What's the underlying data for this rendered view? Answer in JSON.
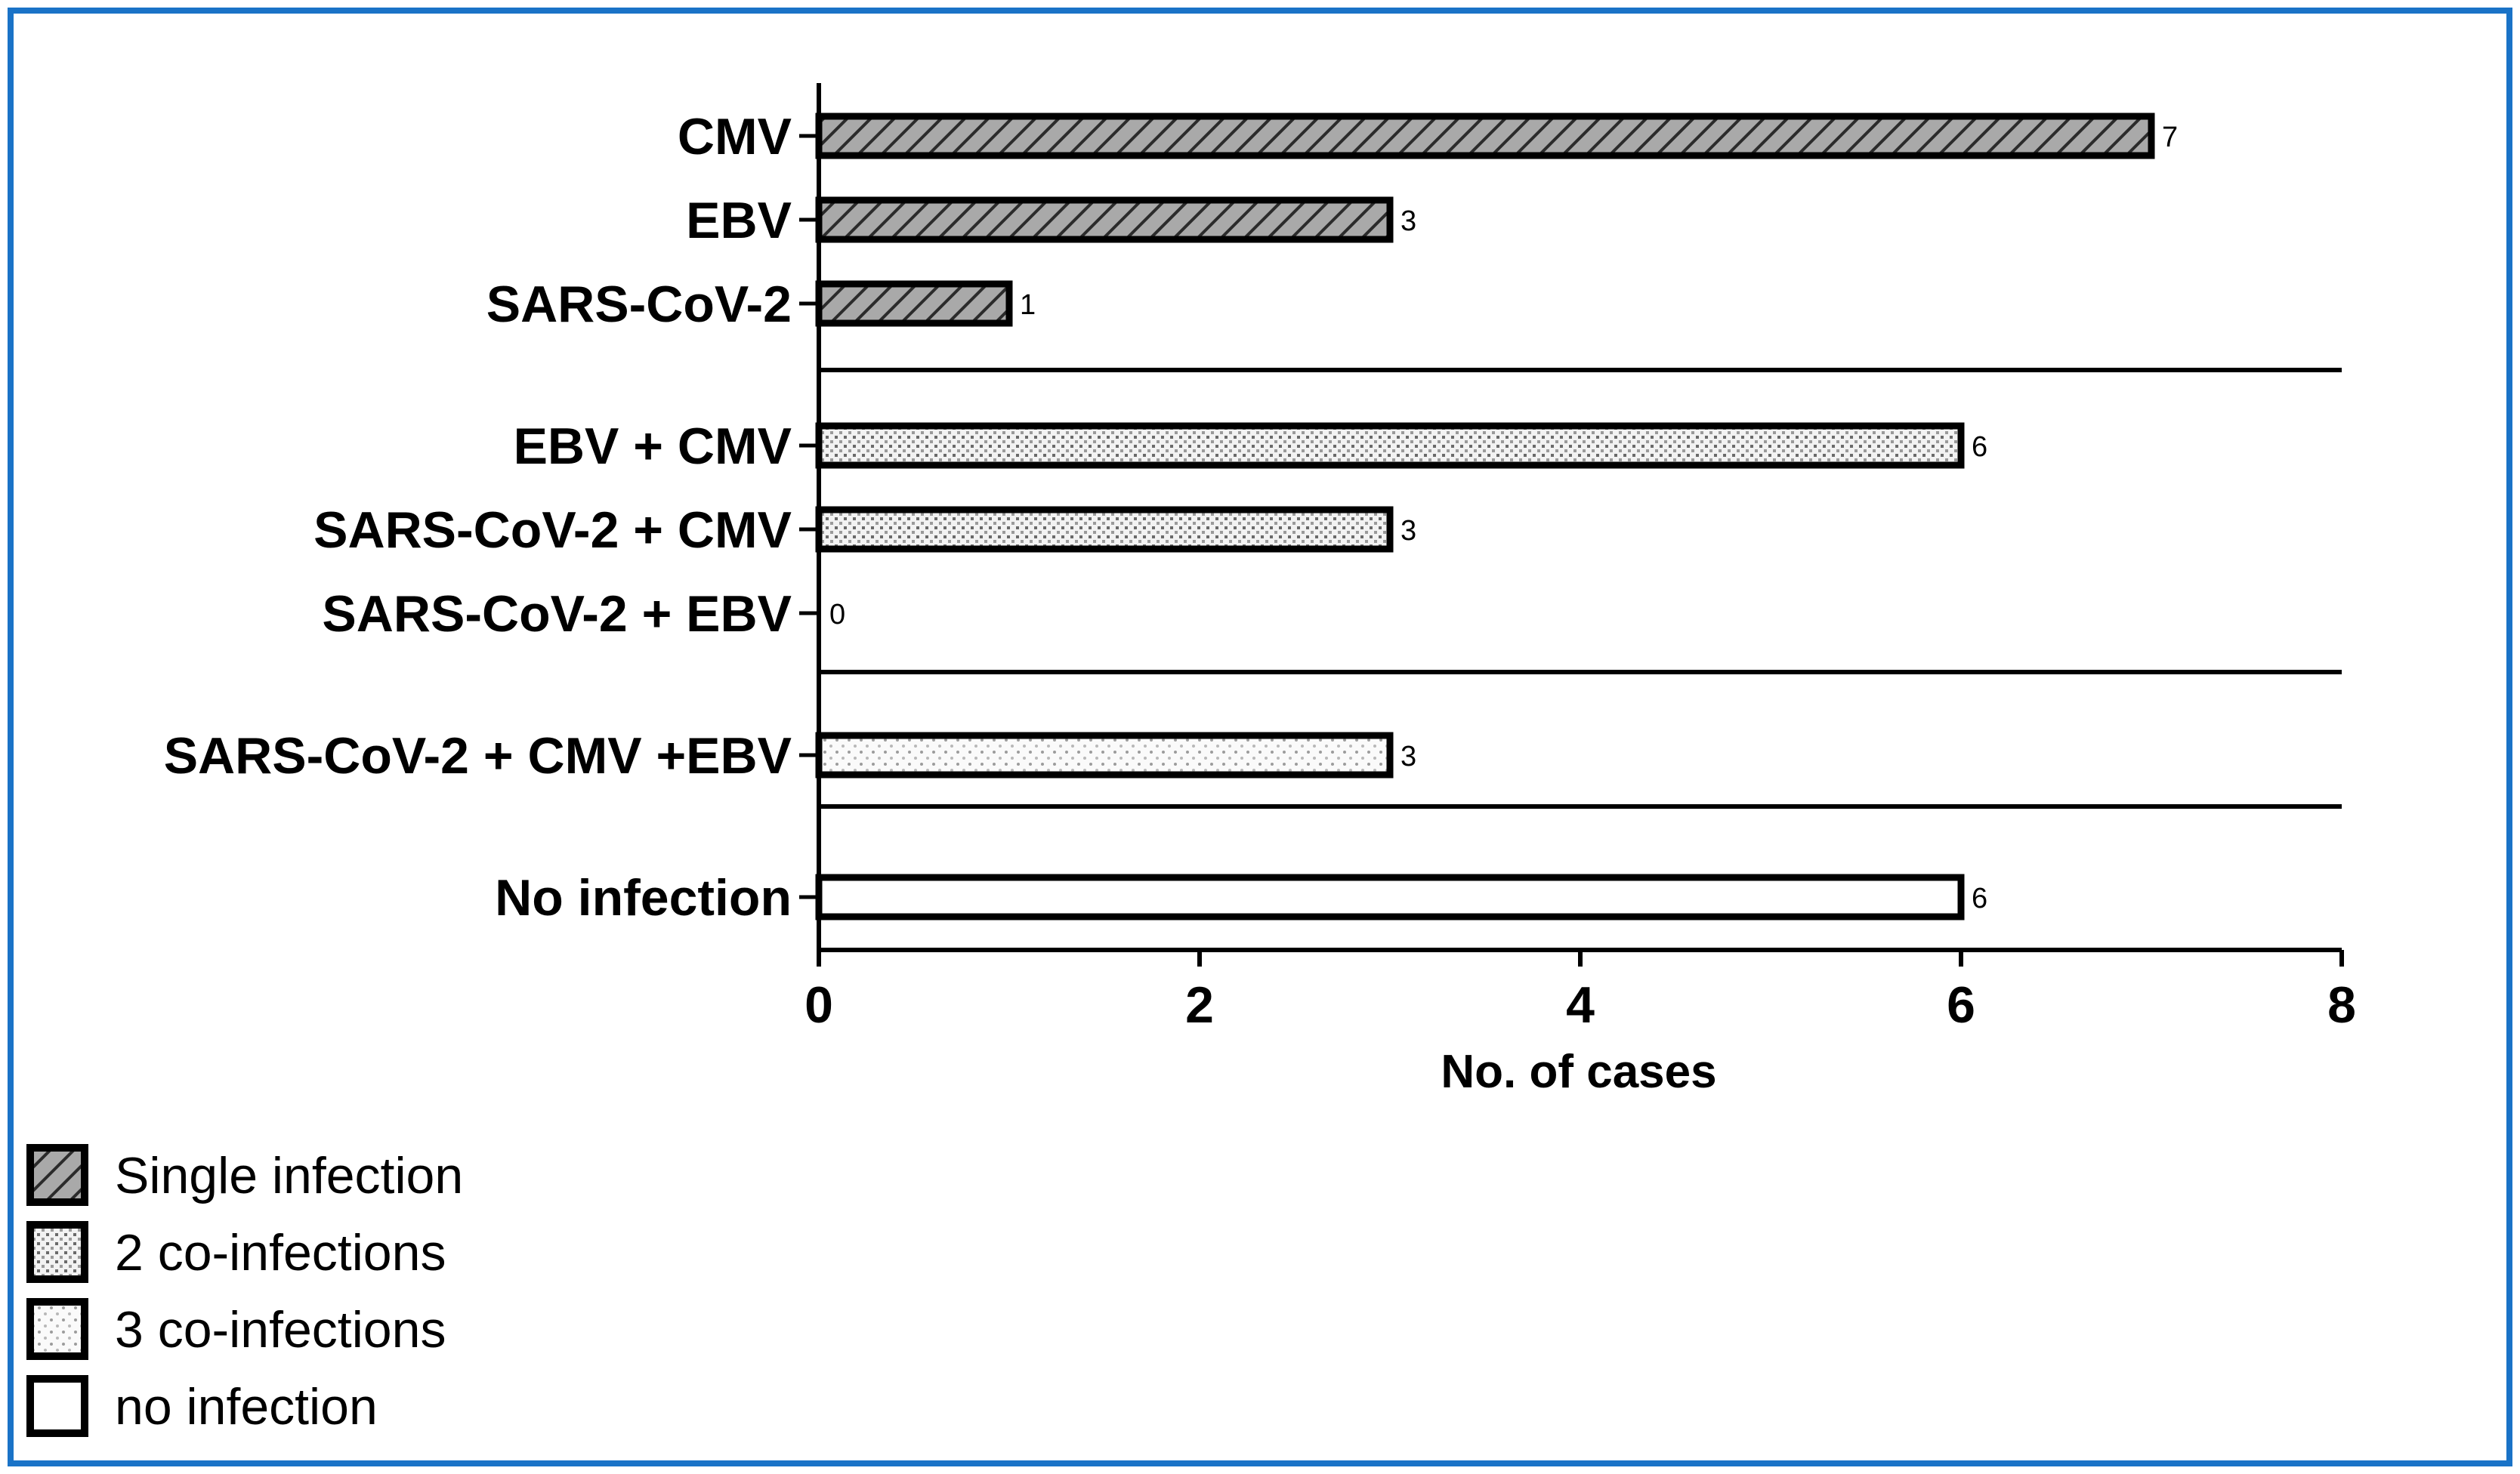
{
  "chart_data": {
    "type": "bar",
    "orientation": "horizontal",
    "title": "",
    "xlabel": "No. of cases",
    "ylabel": "",
    "xlim": [
      0,
      8
    ],
    "xticks": [
      "0",
      "2",
      "4",
      "6",
      "8"
    ],
    "grid": false,
    "border_color": "#1a73c7",
    "groups": [
      {
        "series": "Single infection",
        "pattern": "diagonal-hatch",
        "bars": [
          {
            "category": "CMV",
            "value": 7
          },
          {
            "category": "EBV",
            "value": 3
          },
          {
            "category": "SARS-CoV-2",
            "value": 1
          }
        ]
      },
      {
        "series": "2 co-infections",
        "pattern": "grid-dots",
        "bars": [
          {
            "category": "EBV + CMV",
            "value": 6
          },
          {
            "category": "SARS-CoV-2 + CMV",
            "value": 3
          },
          {
            "category": "SARS-CoV-2 + EBV",
            "value": 0
          }
        ]
      },
      {
        "series": "3 co-infections",
        "pattern": "light-dots",
        "bars": [
          {
            "category": "SARS-CoV-2 + CMV +EBV",
            "value": 3
          }
        ]
      },
      {
        "series": "no infection",
        "pattern": "none",
        "bars": [
          {
            "category": "No infection",
            "value": 6
          }
        ]
      }
    ],
    "legend": {
      "placement": "bottom-left",
      "entries": [
        {
          "label": "Single infection",
          "pattern": "diagonal-hatch"
        },
        {
          "label": "2 co-infections",
          "pattern": "grid-dots"
        },
        {
          "label": "3 co-infections",
          "pattern": "light-dots"
        },
        {
          "label": "no infection",
          "pattern": "none"
        }
      ]
    }
  }
}
